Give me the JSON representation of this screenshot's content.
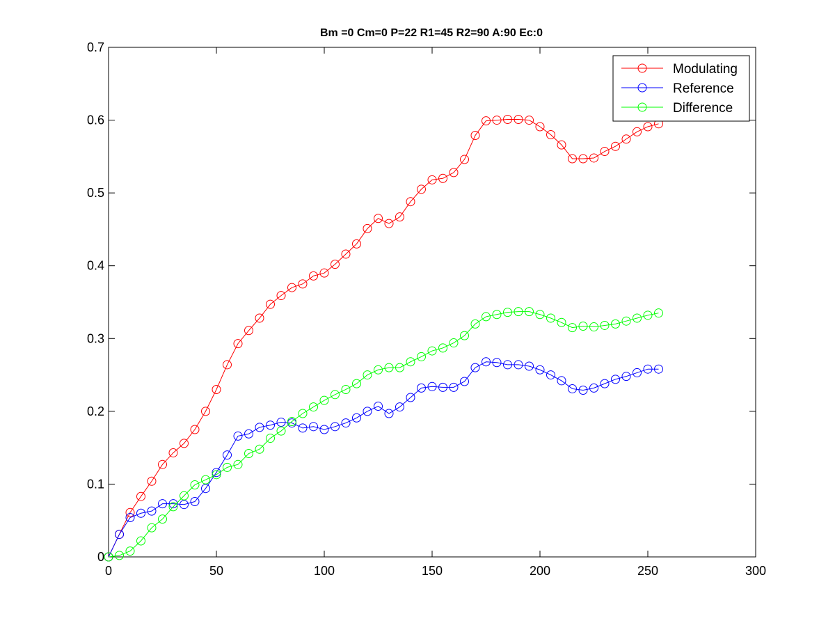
{
  "chart_data": {
    "type": "line",
    "title": "Bm =0  Cm=0  P=22  R1=45  R2=90  A:90  Ec:0",
    "xlabel": "",
    "ylabel": "",
    "xlim": [
      0,
      300
    ],
    "ylim": [
      0,
      0.7
    ],
    "xticks": [
      0,
      50,
      100,
      150,
      200,
      250,
      300
    ],
    "xtick_labels": [
      "0",
      "50",
      "100",
      "150",
      "200",
      "250",
      "300"
    ],
    "yticks": [
      0,
      0.1,
      0.2,
      0.3,
      0.4,
      0.5,
      0.6,
      0.7
    ],
    "ytick_labels": [
      "0",
      "0.1",
      "0.2",
      "0.3",
      "0.4",
      "0.5",
      "0.6",
      "0.7"
    ],
    "grid": false,
    "legend_position": "top-right",
    "marker": "circle",
    "x": [
      0,
      5,
      10,
      15,
      20,
      25,
      30,
      35,
      40,
      45,
      50,
      55,
      60,
      65,
      70,
      75,
      80,
      85,
      90,
      95,
      100,
      105,
      110,
      115,
      120,
      125,
      130,
      135,
      140,
      145,
      150,
      155,
      160,
      165,
      170,
      175,
      180,
      185,
      190,
      195,
      200,
      205,
      210,
      215,
      220,
      225,
      230,
      235,
      240,
      245,
      250,
      255
    ],
    "series": [
      {
        "name": "Modulating",
        "color": "#ff0000",
        "values": [
          0,
          0.031,
          0.061,
          0.083,
          0.104,
          0.127,
          0.143,
          0.156,
          0.175,
          0.2,
          0.23,
          0.264,
          0.293,
          0.311,
          0.328,
          0.347,
          0.359,
          0.37,
          0.375,
          0.386,
          0.39,
          0.402,
          0.416,
          0.43,
          0.451,
          0.465,
          0.458,
          0.467,
          0.488,
          0.505,
          0.518,
          0.52,
          0.528,
          0.546,
          0.579,
          0.599,
          0.6,
          0.601,
          0.601,
          0.6,
          0.591,
          0.58,
          0.566,
          0.547,
          0.547,
          0.548,
          0.557,
          0.564,
          0.574,
          0.584,
          0.591,
          0.595
        ]
      },
      {
        "name": "Reference",
        "color": "#0000ff",
        "values": [
          0,
          0.031,
          0.054,
          0.06,
          0.063,
          0.073,
          0.073,
          0.072,
          0.076,
          0.094,
          0.116,
          0.14,
          0.166,
          0.169,
          0.178,
          0.181,
          0.185,
          0.184,
          0.177,
          0.179,
          0.175,
          0.179,
          0.184,
          0.191,
          0.2,
          0.207,
          0.197,
          0.206,
          0.219,
          0.232,
          0.234,
          0.233,
          0.233,
          0.241,
          0.26,
          0.268,
          0.267,
          0.264,
          0.264,
          0.262,
          0.257,
          0.25,
          0.242,
          0.231,
          0.229,
          0.232,
          0.238,
          0.244,
          0.248,
          0.253,
          0.258,
          0.258
        ]
      },
      {
        "name": "Difference",
        "color": "#00ff00",
        "values": [
          0,
          0.002,
          0.008,
          0.022,
          0.04,
          0.052,
          0.069,
          0.084,
          0.099,
          0.106,
          0.113,
          0.123,
          0.127,
          0.142,
          0.148,
          0.163,
          0.173,
          0.186,
          0.197,
          0.206,
          0.215,
          0.223,
          0.23,
          0.238,
          0.25,
          0.257,
          0.26,
          0.26,
          0.268,
          0.275,
          0.283,
          0.287,
          0.294,
          0.304,
          0.32,
          0.33,
          0.333,
          0.336,
          0.337,
          0.337,
          0.333,
          0.328,
          0.322,
          0.315,
          0.317,
          0.316,
          0.318,
          0.32,
          0.324,
          0.328,
          0.332,
          0.335
        ]
      }
    ]
  }
}
